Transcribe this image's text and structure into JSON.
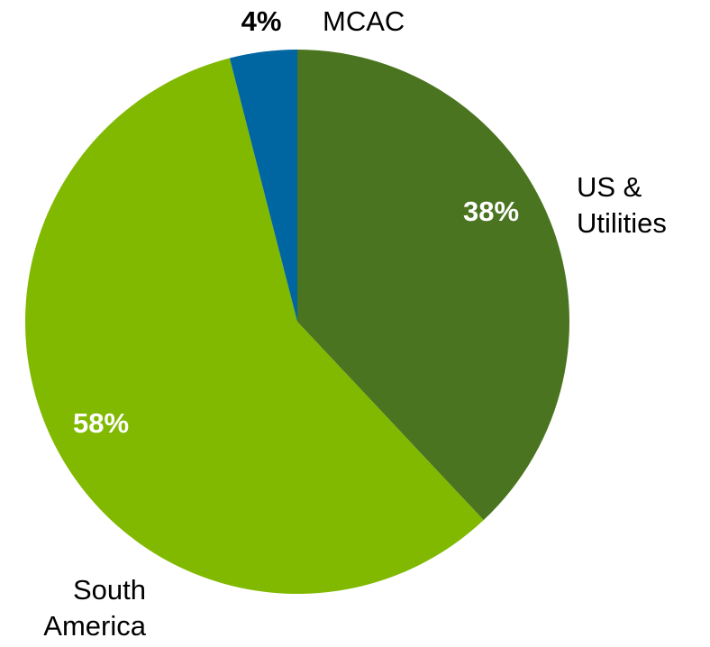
{
  "chart_data": {
    "type": "pie",
    "categories": [
      "US & Utilities",
      "South America",
      "MCAC"
    ],
    "values": [
      38,
      58,
      4
    ],
    "value_labels": [
      "38%",
      "58%",
      "4%"
    ],
    "colors": [
      "#4a7420",
      "#80b900",
      "#0066a1"
    ]
  }
}
